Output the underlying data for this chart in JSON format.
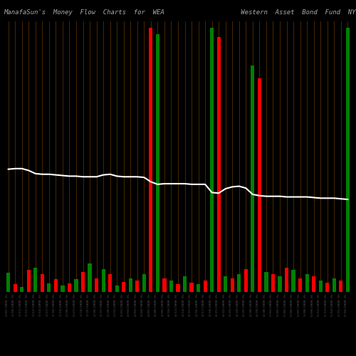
{
  "title": "ManafaSun's  Money  Flow  Charts  for  WEA                    Western  Asset  Bond  Fund  NYSE",
  "background_color": "#000000",
  "bar_colors": [
    "green",
    "red",
    "green",
    "red",
    "green",
    "red",
    "green",
    "red",
    "green",
    "red",
    "green",
    "red",
    "green",
    "red",
    "green",
    "red",
    "green",
    "red",
    "green",
    "red",
    "green",
    "red",
    "green",
    "red",
    "green",
    "red",
    "green",
    "red",
    "green",
    "red",
    "green",
    "red",
    "green",
    "red",
    "green",
    "red",
    "green",
    "red",
    "green",
    "red",
    "green",
    "red",
    "green",
    "red",
    "green",
    "red",
    "green",
    "red",
    "green",
    "red",
    "green"
  ],
  "bar_heights": [
    30,
    12,
    8,
    35,
    38,
    28,
    14,
    20,
    10,
    14,
    20,
    32,
    45,
    22,
    36,
    28,
    10,
    16,
    22,
    18,
    28,
    420,
    410,
    22,
    18,
    12,
    25,
    15,
    12,
    18,
    420,
    405,
    25,
    22,
    28,
    36,
    360,
    340,
    32,
    28,
    25,
    38,
    35,
    22,
    28,
    25,
    18,
    15,
    22,
    18,
    420
  ],
  "ma_line_y": [
    195,
    196,
    196,
    193,
    188,
    187,
    187,
    186,
    185,
    184,
    184,
    183,
    183,
    183,
    186,
    187,
    184,
    183,
    183,
    183,
    182,
    175,
    171,
    172,
    172,
    172,
    172,
    171,
    171,
    171,
    158,
    157,
    164,
    167,
    168,
    165,
    155,
    153,
    152,
    152,
    152,
    151,
    151,
    151,
    151,
    150,
    149,
    149,
    149,
    148,
    147
  ],
  "xlabels": [
    "3/07/2008 0%",
    "3/10/2008 0%",
    "3/11/2008 0%",
    "3/12/2008 0%",
    "3/13/2008 0%",
    "3/14/2008 0%",
    "3/17/2008 0%",
    "3/18/2008 0%",
    "3/19/2008 0%",
    "3/20/2008 0%",
    "3/21/2008 0%",
    "3/24/2008 0%",
    "3/25/2008 0%",
    "3/26/2008 0%",
    "3/27/2008 0%",
    "3/28/2008 0%",
    "3/31/2008 0%",
    "4/01/2008 0%",
    "4/02/2008 0%",
    "4/03/2008 0%",
    "4/04/2008 0%",
    "4/07/2008 0%",
    "4/08/2008 0%",
    "4/09/2008 0%",
    "4/10/2008 0%",
    "4/11/2008 0%",
    "4/14/2008 0%",
    "4/15/2008 0%",
    "4/16/2008 0%",
    "4/17/2008 0%",
    "4/18/2008 0%",
    "4/21/2008 0%",
    "4/22/2008 0%",
    "4/23/2008 0%",
    "4/24/2008 0%",
    "4/25/2008 0%",
    "4/28/2008 0%",
    "4/29/2008 0%",
    "4/30/2008 0%",
    "5/01/2008 0%",
    "5/02/2008 0%",
    "5/05/2008 0%",
    "5/06/2008 0%",
    "5/07/2008 0%",
    "5/08/2008 0%",
    "5/09/2008 0%",
    "5/12/2008 0%",
    "5/13/2008 0%",
    "5/14/2008 0%",
    "5/15/2008 0%",
    "5/16/2008 0%"
  ],
  "grid_color": "#4a2800",
  "ma_color": "#ffffff",
  "title_color": "#aaaaaa",
  "title_fontsize": 6.5,
  "ylim": 430
}
